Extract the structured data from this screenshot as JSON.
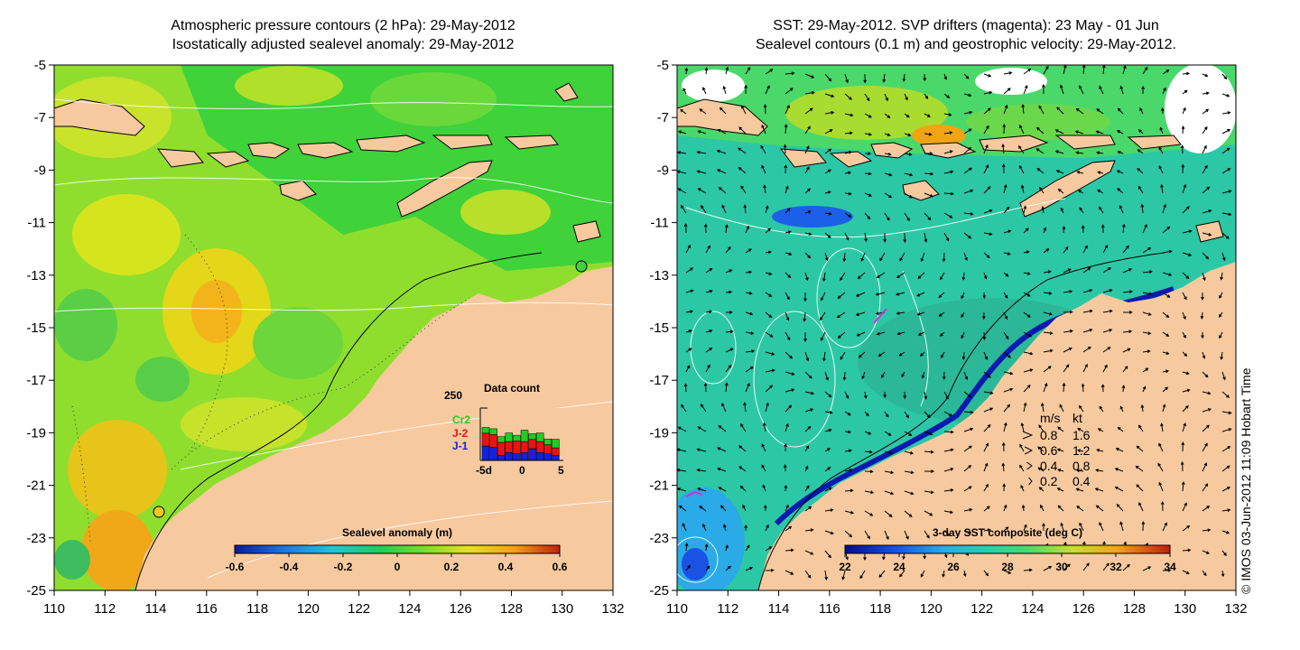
{
  "left_panel": {
    "title_line1": "Atmospheric pressure contours (2 hPa): 29-May-2012",
    "title_line2": "Isostatically adjusted sealevel anomaly: 29-May-2012",
    "colorbar_label": "Sealevel anomaly (m)",
    "colorbar_ticks": [
      "-0.6",
      "-0.4",
      "-0.2",
      "0",
      "0.2",
      "0.4",
      "0.6"
    ],
    "inset": {
      "title": "Data count",
      "ymax_label": "250",
      "x_ticks": [
        "-5d",
        "0",
        "5"
      ],
      "series": [
        {
          "name": "Cr2",
          "color": "#22cc22"
        },
        {
          "name": "J-2",
          "color": "#ee1111"
        },
        {
          "name": "J-1",
          "color": "#1122dd"
        }
      ]
    }
  },
  "right_panel": {
    "title_line1": "SST: 29-May-2012. SVP drifters (magenta): 23 May - 01 Jun",
    "title_line2": "Sealevel contours (0.1 m) and geostrophic velocity: 29-May-2012.",
    "colorbar_label": "3-day SST composite (deg C)",
    "colorbar_ticks": [
      "22",
      "24",
      "26",
      "28",
      "30",
      "32",
      "34"
    ],
    "velocity_legend": {
      "header_ms": "m/s",
      "header_kt": "kt",
      "rows": [
        {
          "ms": "0.8",
          "kt": "1.6"
        },
        {
          "ms": "0.6",
          "kt": "1.2"
        },
        {
          "ms": "0.4",
          "kt": "0.8"
        },
        {
          "ms": "0.2",
          "kt": "0.4"
        }
      ]
    }
  },
  "axes": {
    "lat_ticks": [
      "-5",
      "-7",
      "-9",
      "-11",
      "-13",
      "-15",
      "-17",
      "-19",
      "-21",
      "-23",
      "-25"
    ],
    "lon_ticks": [
      "110",
      "112",
      "114",
      "116",
      "118",
      "120",
      "122",
      "124",
      "126",
      "128",
      "130",
      "132"
    ]
  },
  "credit": "© IMOS 03-Jun-2012 11:09 Hobart Time",
  "colors": {
    "land": "#f7c99e",
    "sla_ramp": [
      "#0a1a9c",
      "#1f74e0",
      "#22c4d8",
      "#22cc55",
      "#88e020",
      "#e8e020",
      "#f4a010",
      "#c81e0a"
    ],
    "sst_ramp": [
      "#040c8c",
      "#1a52e4",
      "#2aaae6",
      "#2ad0a8",
      "#4ad86a",
      "#c8e02a",
      "#f0a414",
      "#c41c0c"
    ]
  }
}
